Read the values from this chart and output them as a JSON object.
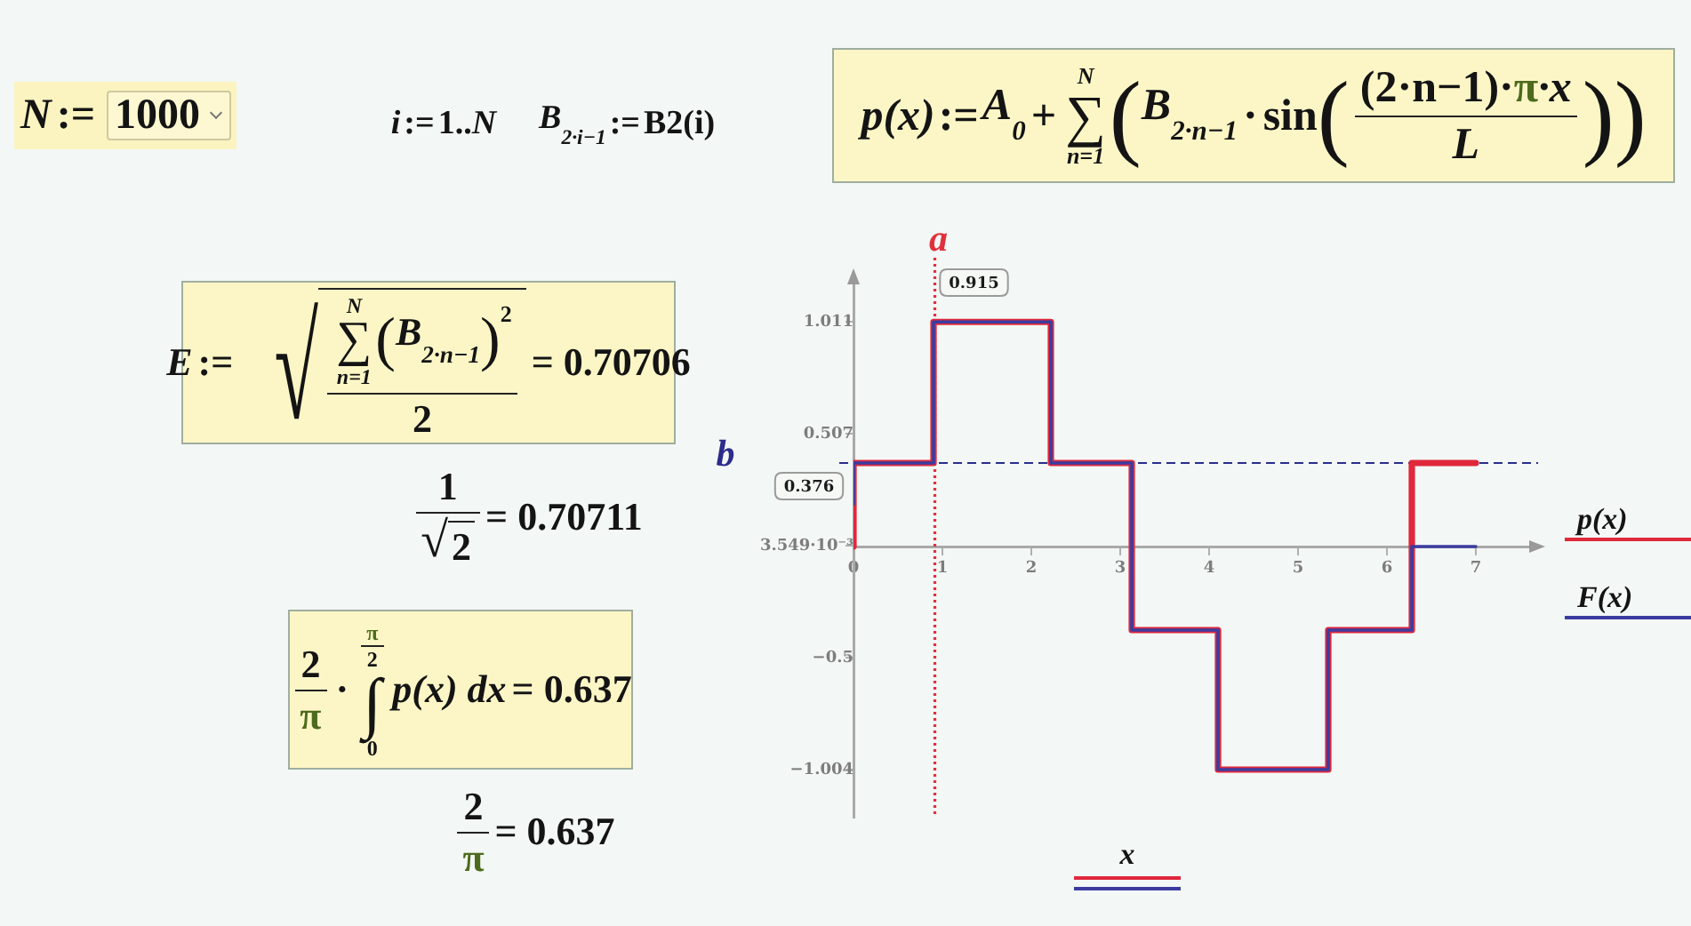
{
  "chart_data": [
    {
      "type": "line",
      "xlabel": "x",
      "xlim": [
        0,
        7.7
      ],
      "xticks": [
        0,
        1,
        2,
        3,
        4,
        5,
        6,
        7
      ],
      "ylim": [
        -1.22,
        1.22
      ],
      "yticks": [
        {
          "value": -1.004,
          "label": "−1.004"
        },
        {
          "value": -0.5,
          "label": "−0.5"
        },
        {
          "value": 0.003549,
          "label": "3.549·10⁻³"
        },
        0.507,
        1.011
      ],
      "series": [
        {
          "name": "p(x)",
          "color": "#e0283c",
          "x": [
            0,
            0,
            0.9,
            0.9,
            2.22,
            2.22,
            3.13,
            3.13,
            4.1,
            4.1,
            5.34,
            5.34,
            6.28,
            6.28,
            7
          ],
          "values": [
            0,
            0.376,
            0.376,
            1.011,
            1.011,
            0.376,
            0.376,
            -0.376,
            -0.376,
            -1.004,
            -1.004,
            -0.376,
            -0.376,
            0.376,
            0.376
          ]
        },
        {
          "name": "F(x)",
          "color": "#3c3ca0",
          "x": [
            0,
            0,
            0.9,
            0.9,
            2.22,
            2.22,
            3.13,
            3.13,
            4.1,
            4.1,
            5.34,
            5.34,
            6.28,
            6.28,
            7
          ],
          "values": [
            0.19,
            0.376,
            0.376,
            1.011,
            1.011,
            0.376,
            0.376,
            -0.376,
            -0.376,
            -1.004,
            -1.004,
            -0.376,
            -0.376,
            0,
            0
          ]
        }
      ],
      "ref_lines": [
        {
          "axis": "x",
          "value": 0.915,
          "label": "a",
          "color": "#e0303c",
          "line_style": "dotted"
        },
        {
          "axis": "y",
          "value": 0.376,
          "label": "b",
          "color": "#2c2c8c",
          "line_style": "dashed"
        }
      ],
      "annotations": [
        {
          "text": "0.915",
          "x": 0.915
        },
        {
          "text": "0.376",
          "x": 0,
          "y": 0.376
        }
      ],
      "marker": "none",
      "legend": "right"
    },
    {
      "type": "other",
      "annotations": [
        "N",
        ":=",
        "1000"
      ]
    },
    {
      "type": "other",
      "annotations": [
        "i",
        ":=",
        "1..",
        "N",
        "B$_{2·i−1}$",
        ":=",
        "B2(i)"
      ]
    },
    {
      "type": "other",
      "annotations": [
        "p(x)",
        ":=",
        "A$_{0}$",
        "+",
        "N",
        "∑",
        "n=1",
        "(",
        "B$_{2·n−1}$",
        "·",
        "sin",
        "(",
        "(2·n−1)·",
        "π",
        "·x",
        "L",
        ")",
        ")"
      ]
    },
    {
      "type": "other",
      "annotations": [
        "E",
        ":=",
        "√",
        "N",
        "∑",
        "n=1",
        "(",
        "B$_{2·n−1}$",
        ")",
        "2",
        "2",
        "= 0.70706"
      ]
    },
    {
      "type": "other",
      "annotations": [
        "1",
        "√",
        "2",
        "= 0.70711"
      ]
    },
    {
      "type": "other",
      "annotations": [
        "2",
        "π",
        "·",
        "π",
        "2",
        "∫",
        "0",
        "p(x) dx",
        "= 0.637"
      ]
    },
    {
      "type": "other",
      "annotations": [
        "2",
        "π",
        "= 0.637"
      ]
    }
  ]
}
